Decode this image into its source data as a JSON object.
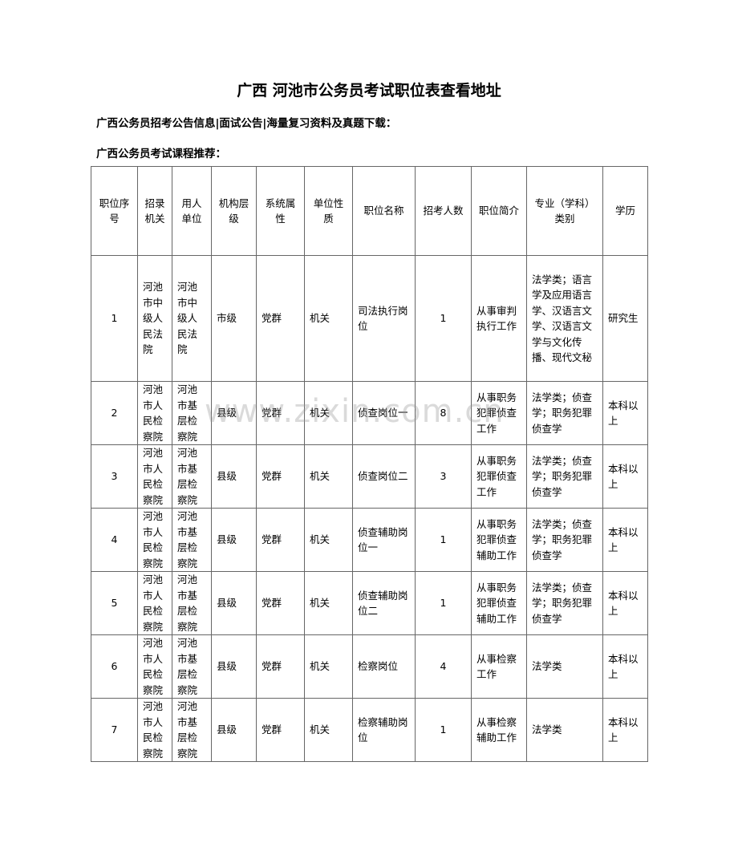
{
  "title": "广西  河池市公务员考试职位表查看地址",
  "subheading1": "广西公务员招考公告信息|面试公告|海量复习资料及真题下载：",
  "subheading2": "广西公务员考试课程推荐：",
  "watermark": "www.zixin.com.cn",
  "table": {
    "headers": [
      "职位序号",
      "招录机关",
      "用人单位",
      "机构层级",
      "系统属性",
      "单位性质",
      "职位名称",
      "招考人数",
      "职位简介",
      "专业（学科）类别",
      "学历"
    ],
    "rows": [
      [
        "1",
        "河池市中级人民法院",
        "河池市中级人民法院",
        "市级",
        "党群",
        "机关",
        "司法执行岗位",
        "1",
        "从事审判执行工作",
        "法学类；语言学及应用语言学、汉语言文学、汉语言文学与文化传播、现代文秘",
        "研究生"
      ],
      [
        "2",
        "河池市人民检察院",
        "河池市基层检察院",
        "县级",
        "党群",
        "机关",
        "侦查岗位一",
        "8",
        "从事职务犯罪侦查工作",
        "法学类；侦查学；职务犯罪侦查学",
        "本科以上"
      ],
      [
        "3",
        "河池市人民检察院",
        "河池市基层检察院",
        "县级",
        "党群",
        "机关",
        "侦查岗位二",
        "3",
        "从事职务犯罪侦查工作",
        "法学类；侦查学；职务犯罪侦查学",
        "本科以上"
      ],
      [
        "4",
        "河池市人民检察院",
        "河池市基层检察院",
        "县级",
        "党群",
        "机关",
        "侦查辅助岗位一",
        "1",
        "从事职务犯罪侦查辅助工作",
        "法学类；侦查学；职务犯罪侦查学",
        "本科以上"
      ],
      [
        "5",
        "河池市人民检察院",
        "河池市基层检察院",
        "县级",
        "党群",
        "机关",
        "侦查辅助岗位二",
        "1",
        "从事职务犯罪侦查辅助工作",
        "法学类；侦查学；职务犯罪侦查学",
        "本科以上"
      ],
      [
        "6",
        "河池市人民检察院",
        "河池市基层检察院",
        "县级",
        "党群",
        "机关",
        "检察岗位",
        "4",
        "从事检察工作",
        "法学类",
        "本科以上"
      ],
      [
        "7",
        "河池市人民检察院",
        "河池市基层检察院",
        "县级",
        "党群",
        "机关",
        "检察辅助岗位",
        "1",
        "从事检察辅助工作",
        "法学类",
        "本科以上"
      ]
    ]
  }
}
